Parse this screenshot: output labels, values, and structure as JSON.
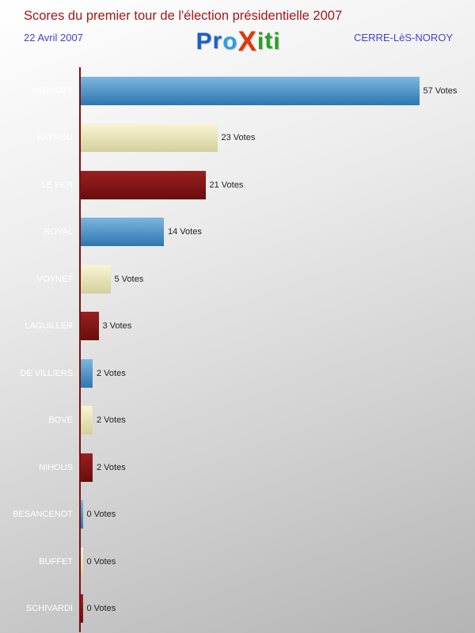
{
  "header": {
    "title": "Scores du premier tour de l'élection présidentielle 2007",
    "date": "22 Avril 2007",
    "location": "CERRE-LèS-NOROY",
    "logo_letters": [
      {
        "ch": "P",
        "color": "#1a5fc8"
      },
      {
        "ch": "r",
        "color": "#1a5fc8"
      },
      {
        "ch": "o",
        "color": "#2a9fe0"
      },
      {
        "ch": "X",
        "color": "#e03808"
      },
      {
        "ch": "i",
        "color": "#28a028"
      },
      {
        "ch": "t",
        "color": "#28a028"
      },
      {
        "ch": "i",
        "color": "#28a028"
      }
    ]
  },
  "chart_data": {
    "type": "bar",
    "orientation": "horizontal",
    "title": "Scores du premier tour de l'élection présidentielle 2007",
    "categories": [
      "SARKOZY",
      "BAYROU",
      "LE PEN",
      "ROYAL",
      "VOYNET",
      "LAGUILLER",
      "DE VILLIERS",
      "BOVE",
      "NIHOUS",
      "BESANCENOT",
      "BUFFET",
      "SCHIVARDI"
    ],
    "values": [
      57,
      23,
      21,
      14,
      5,
      3,
      2,
      2,
      2,
      0,
      0,
      0
    ],
    "value_suffix": " Votes",
    "xlim": [
      0,
      60
    ],
    "grid": false,
    "legend": "none",
    "axis_color": "#7a0f0f",
    "palette": [
      {
        "name": "blue",
        "top": "#7db6de",
        "bottom": "#2d76b0"
      },
      {
        "name": "cream",
        "top": "#f8f5d4",
        "bottom": "#d4cf9e"
      },
      {
        "name": "darkred",
        "top": "#9a2020",
        "bottom": "#6a0d0d"
      }
    ]
  },
  "colors": {
    "title": "#a21818",
    "subtitle_blue": "#4343cf",
    "category_label": "#ffffff",
    "value_label": "#222222",
    "background_top": "#ffffff",
    "background_bottom": "#b4b4b4"
  }
}
